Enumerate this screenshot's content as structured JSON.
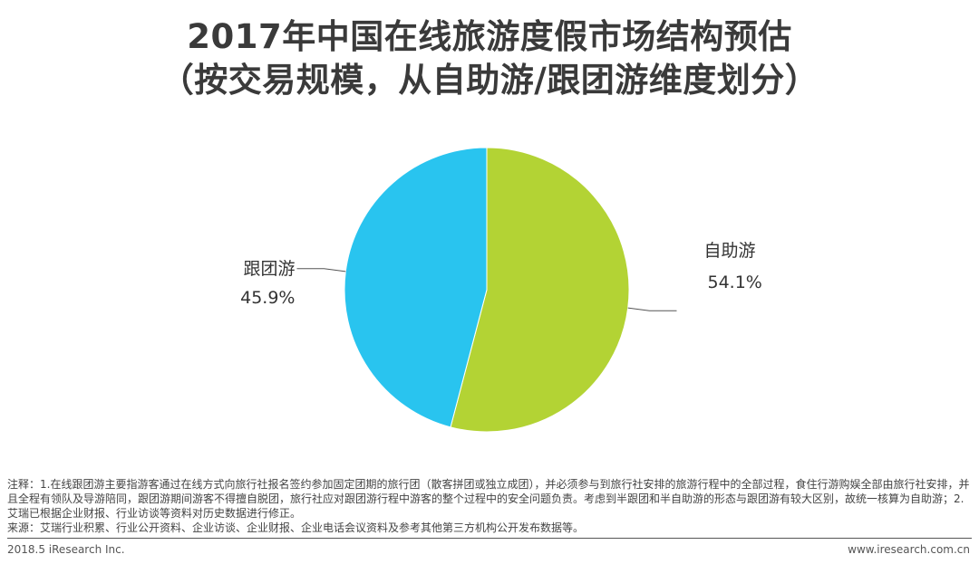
{
  "title": {
    "line1": "2017年中国在线旅游度假市场结构预估",
    "line2": "（按交易规模，从自助游/跟团游维度划分）"
  },
  "chart_data": {
    "type": "pie",
    "categories": [
      "自助游",
      "跟团游"
    ],
    "values": [
      54.1,
      45.9
    ],
    "value_labels": [
      "54.1%",
      "45.9%"
    ],
    "colors": [
      "#b3d334",
      "#29c4ef"
    ],
    "start_angle_deg": 0,
    "direction": "clockwise",
    "legend": "none"
  },
  "notes": {
    "note": "注释：1.在线跟团游主要指游客通过在线方式向旅行社报名签约参加固定团期的旅行团（散客拼团或独立成团），并必须参与到旅行社安排的旅游行程中的全部过程，食住行游购娱全部由旅行社安排，并且全程有领队及导游陪同，跟团游期间游客不得擅自脱团，旅行社应对跟团游行程中游客的整个过程中的安全问题负责。考虑到半跟团和半自助游的形态与跟团游有较大区别，故统一核算为自助游；2.艾瑞已根据企业财报、行业访谈等资料对历史数据进行修正。",
    "source": "来源：艾瑞行业积累、行业公开资料、企业访谈、企业财报、企业电话会议资料及参考其他第三方机构公开发布数据等。"
  },
  "footer": {
    "left": "2018.5 iResearch Inc.",
    "right": "www.iresearch.com.cn"
  }
}
